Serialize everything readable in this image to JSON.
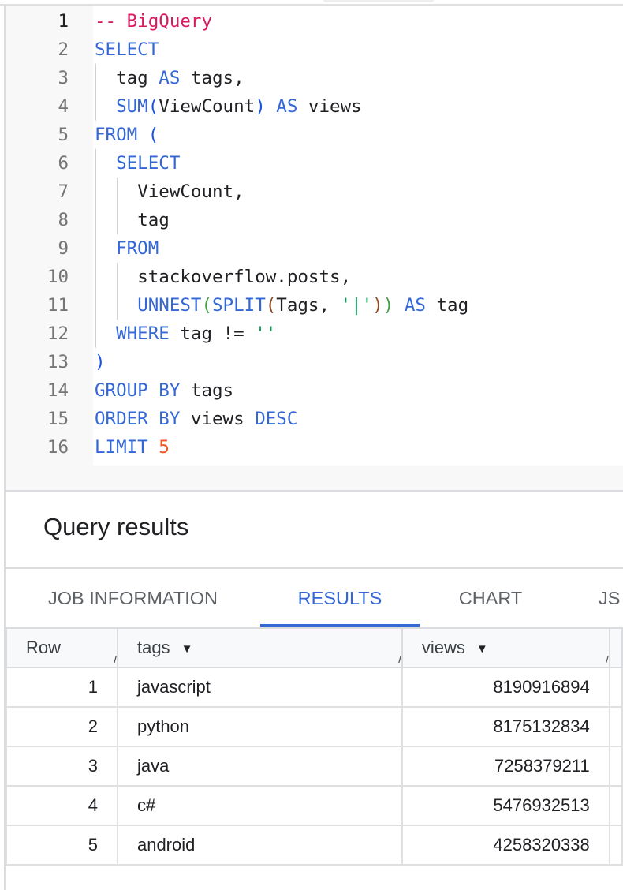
{
  "colors": {
    "keyword": "#3367d6",
    "comment": "#d81b60",
    "string": "#0f9d58",
    "number": "#f4511e",
    "paren_outer": "#1a53e6",
    "paren_green": "#43a047",
    "paren_brown": "#8d4a23",
    "text": "#202124",
    "accent": "#3367d6"
  },
  "editor": {
    "active_line": 1,
    "lines": [
      {
        "n": "1",
        "indent": 0,
        "tokens": [
          {
            "t": "-- BigQuery",
            "c": "comment"
          }
        ]
      },
      {
        "n": "2",
        "indent": 0,
        "tokens": [
          {
            "t": "SELECT",
            "c": "keyword"
          }
        ]
      },
      {
        "n": "3",
        "indent": 1,
        "tokens": [
          {
            "t": "tag ",
            "c": "text"
          },
          {
            "t": "AS",
            "c": "keyword"
          },
          {
            "t": " tags,",
            "c": "text"
          }
        ]
      },
      {
        "n": "4",
        "indent": 1,
        "tokens": [
          {
            "t": "SUM",
            "c": "keyword"
          },
          {
            "t": "(",
            "c": "paren_outer"
          },
          {
            "t": "ViewCount",
            "c": "text"
          },
          {
            "t": ")",
            "c": "paren_outer"
          },
          {
            "t": " ",
            "c": "text"
          },
          {
            "t": "AS",
            "c": "keyword"
          },
          {
            "t": " views",
            "c": "text"
          }
        ]
      },
      {
        "n": "5",
        "indent": 0,
        "tokens": [
          {
            "t": "FROM",
            "c": "keyword"
          },
          {
            "t": " (",
            "c": "paren_outer"
          }
        ]
      },
      {
        "n": "6",
        "indent": 1,
        "tokens": [
          {
            "t": "SELECT",
            "c": "keyword"
          }
        ]
      },
      {
        "n": "7",
        "indent": 2,
        "tokens": [
          {
            "t": "ViewCount,",
            "c": "text"
          }
        ]
      },
      {
        "n": "8",
        "indent": 2,
        "tokens": [
          {
            "t": "tag",
            "c": "text"
          }
        ]
      },
      {
        "n": "9",
        "indent": 1,
        "tokens": [
          {
            "t": "FROM",
            "c": "keyword"
          }
        ]
      },
      {
        "n": "10",
        "indent": 2,
        "tokens": [
          {
            "t": "stackoverflow.posts,",
            "c": "text"
          }
        ]
      },
      {
        "n": "11",
        "indent": 2,
        "tokens": [
          {
            "t": "UNNEST",
            "c": "keyword"
          },
          {
            "t": "(",
            "c": "paren_green"
          },
          {
            "t": "SPLIT",
            "c": "keyword"
          },
          {
            "t": "(",
            "c": "paren_brown"
          },
          {
            "t": "Tags, ",
            "c": "text"
          },
          {
            "t": "'|'",
            "c": "string"
          },
          {
            "t": ")",
            "c": "paren_brown"
          },
          {
            "t": ")",
            "c": "paren_green"
          },
          {
            "t": " ",
            "c": "text"
          },
          {
            "t": "AS",
            "c": "keyword"
          },
          {
            "t": " tag",
            "c": "text"
          }
        ]
      },
      {
        "n": "12",
        "indent": 1,
        "tokens": [
          {
            "t": "WHERE",
            "c": "keyword"
          },
          {
            "t": " tag != ",
            "c": "text"
          },
          {
            "t": "''",
            "c": "string"
          }
        ]
      },
      {
        "n": "13",
        "indent": 0,
        "tokens": [
          {
            "t": ")",
            "c": "paren_outer"
          }
        ]
      },
      {
        "n": "14",
        "indent": 0,
        "tokens": [
          {
            "t": "GROUP BY",
            "c": "keyword"
          },
          {
            "t": " tags",
            "c": "text"
          }
        ]
      },
      {
        "n": "15",
        "indent": 0,
        "tokens": [
          {
            "t": "ORDER BY",
            "c": "keyword"
          },
          {
            "t": " views ",
            "c": "text"
          },
          {
            "t": "DESC",
            "c": "keyword"
          }
        ]
      },
      {
        "n": "16",
        "indent": 0,
        "tokens": [
          {
            "t": "LIMIT",
            "c": "keyword"
          },
          {
            "t": " ",
            "c": "text"
          },
          {
            "t": "5",
            "c": "number"
          }
        ]
      }
    ]
  },
  "results": {
    "title": "Query results",
    "tabs": [
      {
        "label": "JOB INFORMATION"
      },
      {
        "label": "RESULTS",
        "active": true
      },
      {
        "label": "CHART"
      },
      {
        "label": "JS"
      }
    ],
    "columns": [
      "Row",
      "tags",
      "views"
    ],
    "rows": [
      {
        "row": "1",
        "tags": "javascript",
        "views": "8190916894"
      },
      {
        "row": "2",
        "tags": "python",
        "views": "8175132834"
      },
      {
        "row": "3",
        "tags": "java",
        "views": "7258379211"
      },
      {
        "row": "4",
        "tags": "c#",
        "views": "5476932513"
      },
      {
        "row": "5",
        "tags": "android",
        "views": "4258320338"
      }
    ]
  }
}
